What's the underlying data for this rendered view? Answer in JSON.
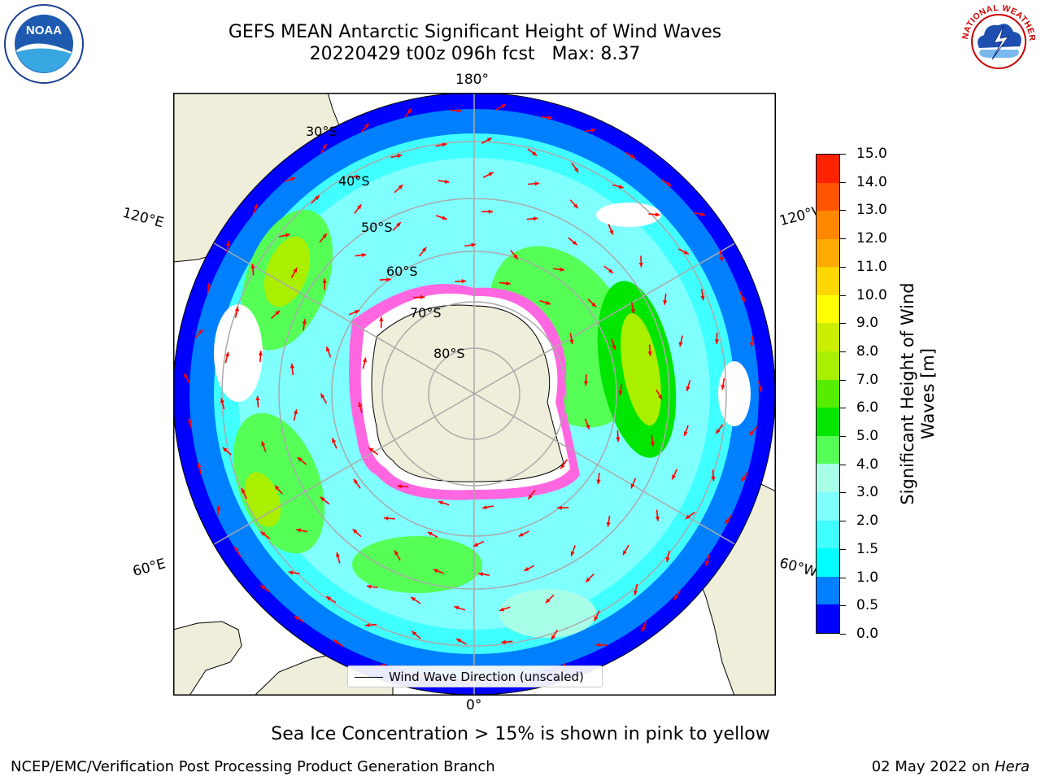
{
  "title": {
    "line1": "GEFS MEAN Antarctic Significant Height of Wind Waves",
    "line2": "20220429 t00z 096h fcst   Max: 8.37"
  },
  "logos": {
    "left": {
      "text": "NOAA",
      "icon": "noaa-logo"
    },
    "right": {
      "text": "NATIONAL WEATHER SERVICE",
      "icon": "nws-logo"
    }
  },
  "map": {
    "projection": "south-polar-stereographic",
    "lon_labels": {
      "top": "180°",
      "upper_left": "120°E",
      "upper_right": "120°W",
      "lower_left": "60°E",
      "lower_right": "60°W",
      "bottom": "0°"
    },
    "lat_labels": [
      "30°S",
      "40°S",
      "50°S",
      "60°S",
      "70°S",
      "80°S"
    ],
    "land_color": "#efeedb",
    "ice_edge_color": "#ff44dd",
    "arrow_color": "#ff0000"
  },
  "legend": {
    "label": "Wind Wave Direction (unscaled)"
  },
  "colorbar": {
    "title": "Significant Height of Wind Waves [m]",
    "ticks": [
      "0.0",
      "0.5",
      "1.0",
      "1.5",
      "2.0",
      "3.0",
      "4.0",
      "5.0",
      "6.0",
      "7.0",
      "8.0",
      "9.0",
      "10.0",
      "11.0",
      "12.0",
      "13.0",
      "14.0",
      "15.0"
    ],
    "colors": [
      "#0000ff",
      "#0080ff",
      "#00ffff",
      "#40ffff",
      "#80ffff",
      "#a8ffe8",
      "#55ff55",
      "#00e600",
      "#55ee00",
      "#aaee00",
      "#ccee00",
      "#ffff00",
      "#ffd700",
      "#ffaa00",
      "#ff8800",
      "#ff5500",
      "#ff2200"
    ]
  },
  "caption": "Sea Ice Concentration > 15% is shown in pink to yellow",
  "footer": {
    "left": "NCEP/EMC/Verification Post Processing Product Generation Branch",
    "right_date": "02 May 2022 on ",
    "right_host": "Hera"
  }
}
